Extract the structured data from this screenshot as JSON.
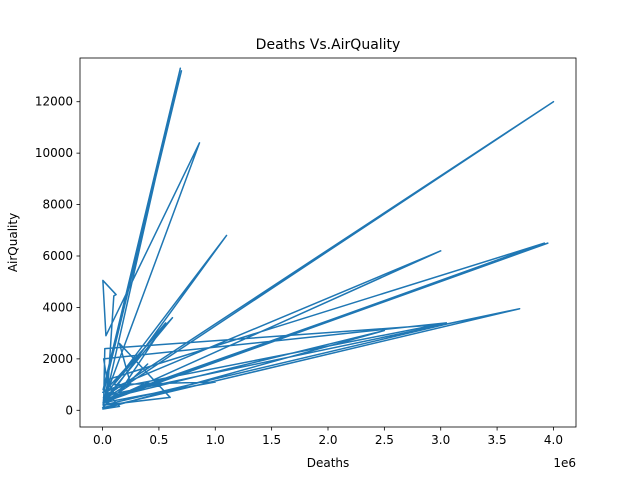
{
  "chart_data": {
    "type": "line",
    "title": "Deaths Vs.AirQuality",
    "xlabel": "Deaths",
    "ylabel": "AirQuality",
    "x_offset_label": "1e6",
    "xlim": [
      -200000,
      4200000
    ],
    "ylim": [
      -650,
      13700
    ],
    "grid": false,
    "legend": "none",
    "line_color": "#1f77b4",
    "x_ticks": [
      0,
      500000,
      1000000,
      1500000,
      2000000,
      2500000,
      3000000,
      3500000,
      4000000
    ],
    "x_tick_labels": [
      "0.0",
      "0.5",
      "1.0",
      "1.5",
      "2.0",
      "2.5",
      "3.0",
      "3.5",
      "4.0"
    ],
    "y_ticks": [
      0,
      2000,
      4000,
      6000,
      8000,
      10000,
      12000
    ],
    "y_tick_labels": [
      "0",
      "2000",
      "4000",
      "6000",
      "8000",
      "10000",
      "12000"
    ],
    "series": [
      {
        "x": [
          5000,
          20000,
          10000,
          3000,
          3700000,
          60000,
          10000,
          3050000,
          150000,
          2000,
          3000000,
          5000,
          3950000,
          10000,
          4000000,
          8000,
          1100000,
          20000,
          690000,
          5000,
          700000,
          10000,
          620000,
          15000,
          860000,
          30000,
          3000,
          120000,
          100000,
          50000,
          120000,
          560000,
          100000,
          1000000,
          10000,
          20000,
          3050000,
          10000,
          600000,
          150000,
          250000,
          40000,
          3920000,
          50000,
          25000,
          5000,
          15000,
          150000,
          3000,
          2500000,
          80000,
          1000,
          400000,
          30000
        ],
        "y": [
          200,
          500,
          150,
          100,
          3950,
          600,
          2000,
          3400,
          900,
          700,
          6200,
          300,
          6500,
          400,
          12000,
          500,
          6800,
          300,
          13300,
          800,
          13200,
          700,
          3600,
          400,
          10400,
          2900,
          5050,
          4500,
          4450,
          1100,
          500,
          3400,
          1000,
          1100,
          300,
          2400,
          3350,
          200,
          500,
          2600,
          1000,
          400,
          6500,
          1200,
          600,
          200,
          800,
          150,
          50,
          3100,
          500,
          100,
          1800,
          200
        ]
      }
    ]
  }
}
